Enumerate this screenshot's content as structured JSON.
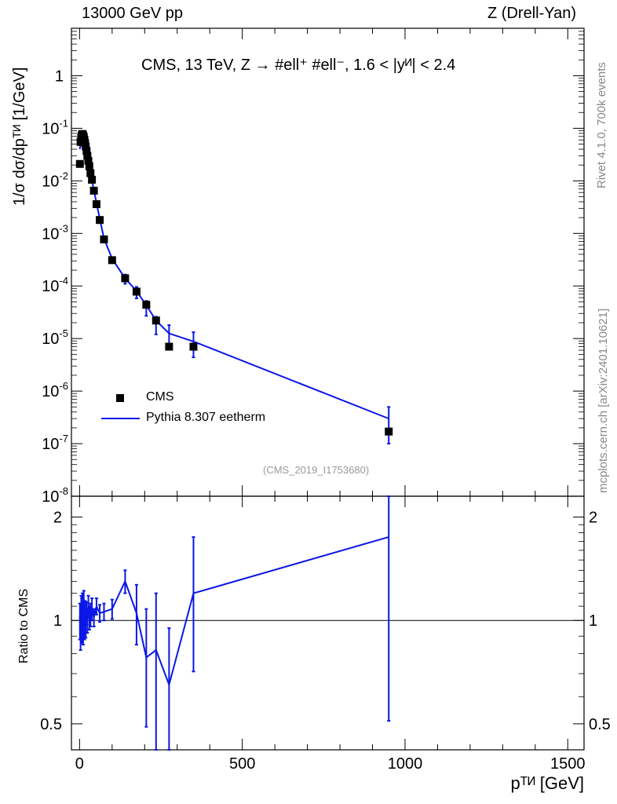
{
  "header": {
    "left": "13000 GeV pp",
    "right": "Z (Drell-Yan)"
  },
  "side_text": {
    "rivet": "Rivet 4.1.0,  700k events",
    "mcplots": "mcplots.cern.ch [arXiv:2401.10621]"
  },
  "chart_data": [
    {
      "type": "scatter",
      "title": "CMS, 13 TeV, Z →  #ell⁺ #ell⁻, 1.6 < |yᴻ| < 2.4",
      "ylabel": "1/σ dσ/dpᵀᴻ [1/GeV]",
      "xlabel": "pᵀᴻ [GeV]",
      "yscale": "log",
      "xlim": [
        -25,
        1550
      ],
      "ylim": [
        1e-08,
        8
      ],
      "ytick_labels": [
        "10⁻⁸",
        "10⁻⁷",
        "10⁻⁶",
        "10⁻⁵",
        "10⁻⁴",
        "10⁻³",
        "10⁻²",
        "10⁻¹",
        "1"
      ],
      "reference_label": "(CMS_2019_I1753680)",
      "legend": [
        "CMS",
        "Pythia 8.307 eetherm"
      ],
      "legend_position": "lower-left",
      "series": [
        {
          "name": "CMS",
          "style": "black squares",
          "x": [
            1,
            3,
            5,
            7,
            9,
            11,
            13,
            15,
            17,
            19,
            21.5,
            24,
            27,
            30,
            33.5,
            38,
            44,
            52,
            62,
            75,
            100,
            140,
            175,
            205,
            235,
            275,
            350,
            950
          ],
          "y": [
            0.021,
            0.055,
            0.068,
            0.075,
            0.078,
            0.074,
            0.068,
            0.06,
            0.052,
            0.045,
            0.037,
            0.03,
            0.024,
            0.019,
            0.014,
            0.0105,
            0.0065,
            0.0036,
            0.0018,
            0.00077,
            0.00031,
            0.00014,
            7.8e-05,
            4.4e-05,
            2.2e-05,
            7e-06,
            7e-06,
            1.7e-07
          ]
        },
        {
          "name": "Pythia 8.307 eetherm",
          "style": "blue line",
          "x": [
            1,
            3,
            5,
            7,
            9,
            11,
            13,
            15,
            17,
            19,
            21.5,
            24,
            27,
            30,
            33.5,
            38,
            44,
            52,
            62,
            75,
            100,
            140,
            175,
            205,
            235,
            275,
            350,
            950
          ],
          "y": [
            0.04,
            0.058,
            0.06,
            0.065,
            0.07,
            0.068,
            0.063,
            0.055,
            0.048,
            0.042,
            0.035,
            0.029,
            0.023,
            0.018,
            0.0135,
            0.0102,
            0.0066,
            0.0038,
            0.0019,
            0.0008,
            0.00033,
            0.00014,
            8e-05,
            4.3e-05,
            2.2e-05,
            1.25e-05,
            8.8e-06,
            3e-07
          ],
          "y_err_low": [
            0,
            0,
            0,
            0,
            0,
            0,
            0,
            0,
            0,
            0,
            0,
            0,
            0,
            0,
            0,
            0,
            0,
            0,
            0,
            0,
            0,
            3e-05,
            2.2e-05,
            1.6e-05,
            1e-05,
            5.5e-06,
            4.4e-06,
            2e-07
          ],
          "y_err_high": [
            0,
            0,
            0,
            0,
            0,
            0,
            0,
            0,
            0,
            0,
            0,
            0,
            0,
            0,
            0,
            0,
            0,
            0,
            0,
            0,
            0,
            2.5e-05,
            1.6e-05,
            9e-06,
            4e-06,
            5.5e-06,
            4.4e-06,
            2e-07
          ]
        }
      ]
    },
    {
      "type": "line",
      "ylabel": "Ratio to CMS",
      "xlabel": "pᵀᴻ [GeV]",
      "xlim": [
        -25,
        1550
      ],
      "ylim": [
        0.42,
        2.3
      ],
      "xtick_labels": [
        "0",
        "500",
        "1000",
        "1500"
      ],
      "ytick_labels": [
        "0.5",
        "1",
        "2"
      ],
      "reference_line": 1,
      "series": [
        {
          "name": "Pythia 8.307 eetherm / CMS",
          "x": [
            1,
            3,
            5,
            7,
            9,
            11,
            13,
            15,
            17,
            19,
            21.5,
            24,
            27,
            30,
            33.5,
            38,
            44,
            52,
            62,
            75,
            100,
            140,
            175,
            205,
            235,
            275,
            350,
            950
          ],
          "y": [
            1.0,
            0.92,
            1.08,
            0.96,
            1.1,
            0.95,
            1.12,
            0.98,
            1.06,
            0.97,
            1.05,
            1.0,
            1.1,
            1.02,
            1.04,
            1.08,
            1.02,
            1.1,
            1.05,
            1.06,
            1.08,
            1.3,
            1.05,
            0.78,
            0.82,
            0.65,
            1.2,
            1.75
          ],
          "y_err_low": [
            0.12,
            0.1,
            0.1,
            0.1,
            0.1,
            0.1,
            0.1,
            0.1,
            0.08,
            0.08,
            0.08,
            0.08,
            0.08,
            0.08,
            0.08,
            0.08,
            0.06,
            0.06,
            0.06,
            0.06,
            0.07,
            0.1,
            0.2,
            0.29,
            0.4,
            0.35,
            0.49,
            1.24
          ],
          "y_err_high": [
            0.12,
            0.1,
            0.1,
            0.1,
            0.1,
            0.1,
            0.1,
            0.1,
            0.08,
            0.08,
            0.08,
            0.08,
            0.08,
            0.08,
            0.08,
            0.08,
            0.06,
            0.06,
            0.06,
            0.06,
            0.07,
            0.1,
            0.22,
            0.3,
            0.38,
            0.3,
            0.55,
            0.55
          ]
        }
      ]
    }
  ]
}
